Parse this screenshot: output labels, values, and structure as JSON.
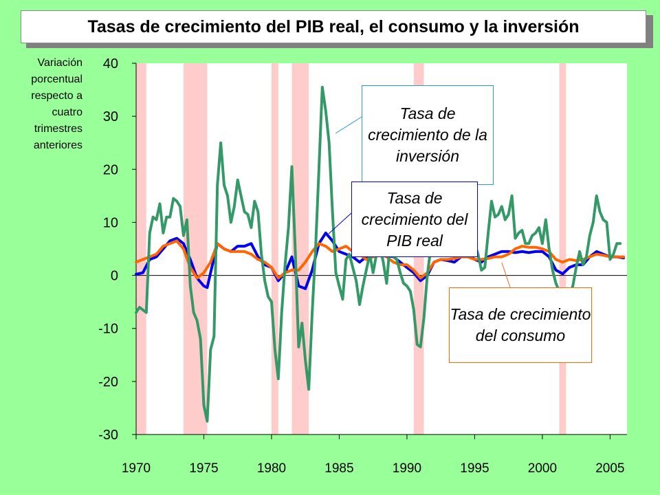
{
  "title": "Tasas de crecimiento del PIB real, el consumo y la inversión",
  "ylabel": "Variación porcentual respecto a cuatro trimestres anteriores",
  "callouts": {
    "investment": "Tasa de crecimiento de la inversión",
    "gdp": "Tasa de crecimiento del PIB real",
    "consumption": "Tasa de crecimiento del consumo"
  },
  "colors": {
    "background": "#99ff99",
    "plot_area": "#ffffff",
    "recession": "#ffcccc",
    "gdp": "#0000ee",
    "consumption": "#ff6600",
    "investment": "#339966",
    "investment_callout_border": "#3399cc",
    "gdp_callout_border": "#0000ee",
    "consumption_callout_border": "#ff6600"
  },
  "chart_data": {
    "type": "line",
    "title": "Tasas de crecimiento del PIB real, el consumo y la inversión",
    "ylabel": "Variación porcentual respecto a cuatro trimestres anteriores",
    "xlabel": "",
    "xlim": [
      1970,
      2006.25
    ],
    "ylim": [
      -30,
      40
    ],
    "yticks": [
      40,
      30,
      20,
      10,
      0,
      -10,
      -20,
      -30
    ],
    "xticks": [
      1970,
      1975,
      1980,
      1985,
      1990,
      1995,
      2000,
      2005
    ],
    "grid": false,
    "recessions": [
      [
        1970.0,
        1970.75
      ],
      [
        1973.5,
        1975.25
      ],
      [
        1980.0,
        1980.5
      ],
      [
        1981.5,
        1982.75
      ],
      [
        1990.5,
        1991.25
      ],
      [
        2001.25,
        2001.75
      ]
    ],
    "series": [
      {
        "name": "Tasa de crecimiento del PIB real",
        "key": "gdp",
        "points": [
          [
            1970.0,
            0.2
          ],
          [
            1970.5,
            0.5
          ],
          [
            1971.0,
            3.0
          ],
          [
            1971.5,
            3.5
          ],
          [
            1972.0,
            5.0
          ],
          [
            1972.5,
            6.5
          ],
          [
            1973.0,
            7.0
          ],
          [
            1973.5,
            6.0
          ],
          [
            1974.0,
            3.0
          ],
          [
            1974.5,
            -0.5
          ],
          [
            1975.0,
            -2.0
          ],
          [
            1975.25,
            -2.3
          ],
          [
            1975.5,
            0.5
          ],
          [
            1976.0,
            6.0
          ],
          [
            1976.5,
            5.0
          ],
          [
            1977.0,
            4.5
          ],
          [
            1977.5,
            5.5
          ],
          [
            1978.0,
            5.5
          ],
          [
            1978.5,
            6.0
          ],
          [
            1979.0,
            3.5
          ],
          [
            1979.5,
            2.0
          ],
          [
            1980.0,
            1.5
          ],
          [
            1980.5,
            -1.0
          ],
          [
            1981.0,
            0.5
          ],
          [
            1981.5,
            3.5
          ],
          [
            1982.0,
            -2.0
          ],
          [
            1982.5,
            -2.5
          ],
          [
            1983.0,
            1.0
          ],
          [
            1983.5,
            6.0
          ],
          [
            1984.0,
            8.0
          ],
          [
            1984.5,
            6.5
          ],
          [
            1985.0,
            4.5
          ],
          [
            1985.5,
            4.0
          ],
          [
            1986.0,
            3.5
          ],
          [
            1986.5,
            2.5
          ],
          [
            1987.0,
            3.5
          ],
          [
            1987.5,
            4.0
          ],
          [
            1988.0,
            4.0
          ],
          [
            1988.5,
            3.8
          ],
          [
            1989.0,
            3.5
          ],
          [
            1989.5,
            2.5
          ],
          [
            1990.0,
            1.5
          ],
          [
            1990.5,
            0.5
          ],
          [
            1991.0,
            -1.0
          ],
          [
            1991.5,
            0.0
          ],
          [
            1992.0,
            2.5
          ],
          [
            1992.5,
            3.0
          ],
          [
            1993.0,
            2.8
          ],
          [
            1993.5,
            2.5
          ],
          [
            1994.0,
            3.5
          ],
          [
            1994.5,
            4.0
          ],
          [
            1995.0,
            3.0
          ],
          [
            1995.5,
            2.5
          ],
          [
            1996.0,
            3.5
          ],
          [
            1996.5,
            4.0
          ],
          [
            1997.0,
            4.5
          ],
          [
            1997.5,
            4.5
          ],
          [
            1998.0,
            4.3
          ],
          [
            1998.5,
            4.5
          ],
          [
            1999.0,
            4.3
          ],
          [
            1999.5,
            4.5
          ],
          [
            2000.0,
            4.5
          ],
          [
            2000.5,
            3.5
          ],
          [
            2001.0,
            1.0
          ],
          [
            2001.5,
            0.3
          ],
          [
            2002.0,
            1.5
          ],
          [
            2002.5,
            2.0
          ],
          [
            2003.0,
            2.0
          ],
          [
            2003.5,
            3.5
          ],
          [
            2004.0,
            4.5
          ],
          [
            2004.5,
            4.0
          ],
          [
            2005.0,
            3.5
          ],
          [
            2005.5,
            3.5
          ],
          [
            2006.0,
            3.3
          ]
        ]
      },
      {
        "name": "Tasa de crecimiento del consumo",
        "key": "consumption",
        "points": [
          [
            1970.0,
            2.5
          ],
          [
            1970.5,
            3.0
          ],
          [
            1971.0,
            3.5
          ],
          [
            1971.5,
            4.0
          ],
          [
            1972.0,
            5.5
          ],
          [
            1972.5,
            6.0
          ],
          [
            1973.0,
            6.5
          ],
          [
            1973.5,
            5.0
          ],
          [
            1974.0,
            1.5
          ],
          [
            1974.5,
            -0.5
          ],
          [
            1975.0,
            0.5
          ],
          [
            1975.5,
            2.5
          ],
          [
            1976.0,
            6.0
          ],
          [
            1976.5,
            5.0
          ],
          [
            1977.0,
            4.5
          ],
          [
            1977.5,
            4.5
          ],
          [
            1978.0,
            4.5
          ],
          [
            1978.5,
            4.0
          ],
          [
            1979.0,
            3.0
          ],
          [
            1979.5,
            2.5
          ],
          [
            1980.0,
            1.5
          ],
          [
            1980.5,
            -0.5
          ],
          [
            1981.0,
            0.5
          ],
          [
            1981.5,
            1.0
          ],
          [
            1982.0,
            1.0
          ],
          [
            1982.5,
            2.5
          ],
          [
            1983.0,
            4.5
          ],
          [
            1983.5,
            6.0
          ],
          [
            1984.0,
            5.5
          ],
          [
            1984.5,
            4.5
          ],
          [
            1985.0,
            5.0
          ],
          [
            1985.5,
            5.5
          ],
          [
            1986.0,
            4.5
          ],
          [
            1986.5,
            4.0
          ],
          [
            1987.0,
            3.0
          ],
          [
            1987.5,
            3.5
          ],
          [
            1988.0,
            4.0
          ],
          [
            1988.5,
            3.5
          ],
          [
            1989.0,
            2.5
          ],
          [
            1989.5,
            2.0
          ],
          [
            1990.0,
            2.0
          ],
          [
            1990.5,
            1.0
          ],
          [
            1991.0,
            -0.5
          ],
          [
            1991.5,
            0.5
          ],
          [
            1992.0,
            2.5
          ],
          [
            1992.5,
            3.0
          ],
          [
            1993.0,
            3.0
          ],
          [
            1993.5,
            3.2
          ],
          [
            1994.0,
            3.5
          ],
          [
            1994.5,
            3.5
          ],
          [
            1995.0,
            3.0
          ],
          [
            1995.5,
            3.0
          ],
          [
            1996.0,
            3.2
          ],
          [
            1996.5,
            3.5
          ],
          [
            1997.0,
            3.5
          ],
          [
            1997.5,
            4.0
          ],
          [
            1998.0,
            5.0
          ],
          [
            1998.5,
            5.5
          ],
          [
            1999.0,
            5.3
          ],
          [
            1999.5,
            5.3
          ],
          [
            2000.0,
            5.0
          ],
          [
            2000.5,
            4.5
          ],
          [
            2001.0,
            3.0
          ],
          [
            2001.5,
            2.5
          ],
          [
            2002.0,
            3.0
          ],
          [
            2002.5,
            2.8
          ],
          [
            2003.0,
            3.0
          ],
          [
            2003.5,
            3.5
          ],
          [
            2004.0,
            4.0
          ],
          [
            2004.5,
            3.8
          ],
          [
            2005.0,
            3.5
          ],
          [
            2005.5,
            3.5
          ],
          [
            2006.0,
            3.5
          ]
        ]
      },
      {
        "name": "Tasa de crecimiento de la inversión",
        "key": "investment",
        "points": [
          [
            1970.0,
            -7.0
          ],
          [
            1970.25,
            -6.0
          ],
          [
            1970.75,
            -7.0
          ],
          [
            1971.0,
            8.0
          ],
          [
            1971.25,
            11.0
          ],
          [
            1971.5,
            10.5
          ],
          [
            1971.75,
            13.5
          ],
          [
            1972.0,
            8.0
          ],
          [
            1972.25,
            11.0
          ],
          [
            1972.5,
            11.0
          ],
          [
            1972.75,
            14.5
          ],
          [
            1973.0,
            14.0
          ],
          [
            1973.25,
            13.0
          ],
          [
            1973.5,
            7.5
          ],
          [
            1973.75,
            10.5
          ],
          [
            1974.0,
            -2.0
          ],
          [
            1974.25,
            -7.0
          ],
          [
            1974.5,
            -8.5
          ],
          [
            1974.75,
            -12.0
          ],
          [
            1975.0,
            -24.5
          ],
          [
            1975.25,
            -27.5
          ],
          [
            1975.5,
            -14.0
          ],
          [
            1975.75,
            -11.5
          ],
          [
            1976.0,
            17.0
          ],
          [
            1976.25,
            25.0
          ],
          [
            1976.5,
            17.0
          ],
          [
            1976.75,
            15.0
          ],
          [
            1977.0,
            10.0
          ],
          [
            1977.25,
            13.0
          ],
          [
            1977.5,
            18.0
          ],
          [
            1977.75,
            15.0
          ],
          [
            1978.0,
            12.0
          ],
          [
            1978.25,
            11.5
          ],
          [
            1978.5,
            9.0
          ],
          [
            1978.75,
            14.0
          ],
          [
            1979.0,
            12.0
          ],
          [
            1979.25,
            4.0
          ],
          [
            1979.5,
            -1.0
          ],
          [
            1979.75,
            -4.0
          ],
          [
            1980.0,
            -5.0
          ],
          [
            1980.25,
            -14.0
          ],
          [
            1980.5,
            -19.5
          ],
          [
            1980.75,
            -7.0
          ],
          [
            1981.0,
            2.0
          ],
          [
            1981.25,
            9.0
          ],
          [
            1981.5,
            20.5
          ],
          [
            1981.75,
            5.0
          ],
          [
            1982.0,
            -13.5
          ],
          [
            1982.25,
            -9.0
          ],
          [
            1982.5,
            -16.0
          ],
          [
            1982.75,
            -21.5
          ],
          [
            1983.0,
            -7.0
          ],
          [
            1983.25,
            5.0
          ],
          [
            1983.5,
            20.0
          ],
          [
            1983.75,
            35.5
          ],
          [
            1984.0,
            31.0
          ],
          [
            1984.25,
            25.0
          ],
          [
            1984.5,
            12.0
          ],
          [
            1984.75,
            0.5
          ],
          [
            1985.0,
            -2.0
          ],
          [
            1985.25,
            -4.5
          ],
          [
            1985.5,
            3.0
          ],
          [
            1985.75,
            4.0
          ],
          [
            1986.0,
            1.5
          ],
          [
            1986.25,
            -1.0
          ],
          [
            1986.5,
            -5.5
          ],
          [
            1986.75,
            -2.0
          ],
          [
            1987.0,
            1.0
          ],
          [
            1987.25,
            4.0
          ],
          [
            1987.5,
            0.5
          ],
          [
            1987.75,
            4.0
          ],
          [
            1988.0,
            5.5
          ],
          [
            1988.25,
            2.5
          ],
          [
            1988.5,
            -1.5
          ],
          [
            1988.75,
            6.0
          ],
          [
            1989.0,
            3.5
          ],
          [
            1989.25,
            3.0
          ],
          [
            1989.5,
            0.5
          ],
          [
            1989.75,
            -1.5
          ],
          [
            1990.0,
            -2.0
          ],
          [
            1990.25,
            -3.0
          ],
          [
            1990.5,
            -6.5
          ],
          [
            1990.75,
            -13.0
          ],
          [
            1991.0,
            -13.5
          ],
          [
            1991.25,
            -8.0
          ],
          [
            1991.5,
            0.0
          ],
          [
            1991.75,
            5.0
          ],
          [
            1992.0,
            7.0
          ],
          [
            1992.5,
            10.0
          ],
          [
            1993.0,
            8.0
          ],
          [
            1993.5,
            7.0
          ],
          [
            1994.0,
            12.0
          ],
          [
            1994.5,
            10.0
          ],
          [
            1995.0,
            6.0
          ],
          [
            1995.25,
            4.0
          ],
          [
            1995.5,
            1.0
          ],
          [
            1995.75,
            1.5
          ],
          [
            1996.0,
            8.0
          ],
          [
            1996.25,
            14.0
          ],
          [
            1996.5,
            11.0
          ],
          [
            1996.75,
            11.5
          ],
          [
            1997.0,
            13.0
          ],
          [
            1997.25,
            10.5
          ],
          [
            1997.5,
            11.5
          ],
          [
            1997.75,
            15.0
          ],
          [
            1998.0,
            7.0
          ],
          [
            1998.25,
            8.0
          ],
          [
            1998.5,
            8.5
          ],
          [
            1998.75,
            6.0
          ],
          [
            1999.0,
            6.0
          ],
          [
            1999.25,
            7.5
          ],
          [
            1999.5,
            8.0
          ],
          [
            1999.75,
            9.0
          ],
          [
            2000.0,
            6.0
          ],
          [
            2000.25,
            10.5
          ],
          [
            2000.5,
            5.0
          ],
          [
            2000.75,
            1.0
          ],
          [
            2001.0,
            -1.5
          ],
          [
            2001.25,
            -3.0
          ],
          [
            2001.5,
            -5.5
          ],
          [
            2001.75,
            -6.0
          ],
          [
            2002.0,
            -3.5
          ],
          [
            2002.25,
            -2.0
          ],
          [
            2002.5,
            1.5
          ],
          [
            2002.75,
            4.5
          ],
          [
            2003.0,
            2.0
          ],
          [
            2003.25,
            3.5
          ],
          [
            2003.5,
            7.5
          ],
          [
            2003.75,
            10.0
          ],
          [
            2004.0,
            15.0
          ],
          [
            2004.25,
            12.0
          ],
          [
            2004.5,
            10.5
          ],
          [
            2004.75,
            10.0
          ],
          [
            2005.0,
            3.0
          ],
          [
            2005.25,
            4.0
          ],
          [
            2005.5,
            6.0
          ],
          [
            2005.75,
            6.0
          ]
        ]
      }
    ]
  }
}
